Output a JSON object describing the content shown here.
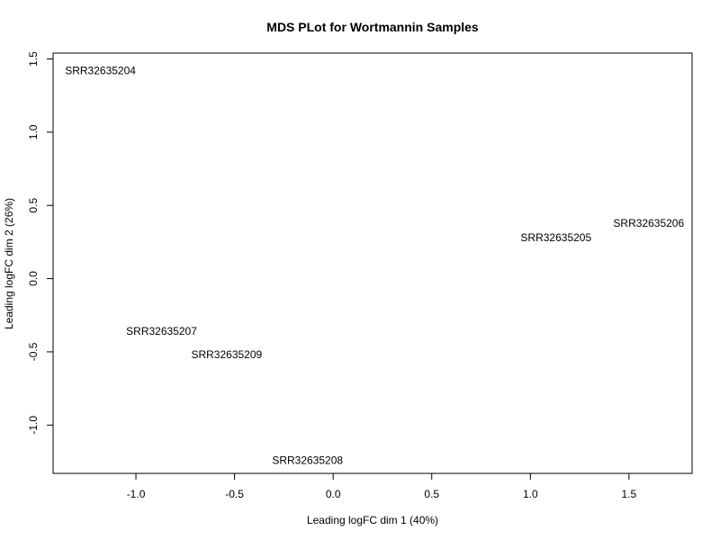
{
  "chart_data": {
    "type": "scatter",
    "title": "MDS PLot for Wortmannin Samples",
    "xlabel": "Leading logFC dim 1 (40%)",
    "ylabel": "Leading logFC dim 2 (26%)",
    "xlim": [
      -1.42,
      1.82
    ],
    "ylim": [
      -1.33,
      1.54
    ],
    "xticks": [
      -1.0,
      -0.5,
      0.0,
      0.5,
      1.0,
      1.5
    ],
    "xtick_labels": [
      "-1.0",
      "-0.5",
      "0.0",
      "0.5",
      "1.0",
      "1.5"
    ],
    "yticks": [
      -1.0,
      -0.5,
      0.0,
      0.5,
      1.0,
      1.5
    ],
    "ytick_labels": [
      "-1.0",
      "-0.5",
      "0.0",
      "0.5",
      "1.0",
      "1.5"
    ],
    "grid": false,
    "points": [
      {
        "label": "SRR32635204",
        "x": -1.18,
        "y": 1.42
      },
      {
        "label": "SRR32635205",
        "x": 1.13,
        "y": 0.28
      },
      {
        "label": "SRR32635206",
        "x": 1.6,
        "y": 0.38
      },
      {
        "label": "SRR32635207",
        "x": -0.87,
        "y": -0.36
      },
      {
        "label": "SRR32635208",
        "x": -0.13,
        "y": -1.24
      },
      {
        "label": "SRR32635209",
        "x": -0.54,
        "y": -0.52
      }
    ]
  }
}
